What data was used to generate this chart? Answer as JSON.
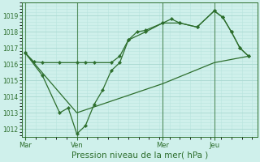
{
  "bg_color": "#cff0eb",
  "grid_color_major": "#a8d8d0",
  "grid_color_minor": "#b8e4de",
  "line_color": "#2d6e2d",
  "xlabel": "Pression niveau de la mer( hPa )",
  "xlabel_fontsize": 7.5,
  "ylim": [
    1011.5,
    1019.8
  ],
  "yticks": [
    1012,
    1013,
    1014,
    1015,
    1016,
    1017,
    1018,
    1019
  ],
  "day_labels": [
    "Mar",
    "Ven",
    "Mer",
    "Jeu"
  ],
  "day_positions": [
    0,
    3,
    8,
    11
  ],
  "xmin": -0.2,
  "xmax": 13.5,
  "series1_x": [
    0,
    0.5,
    1.0,
    2.0,
    3.0,
    3.5,
    4.0,
    5.0,
    5.5,
    6.0,
    6.5,
    7.0,
    8.0,
    8.5,
    9.0,
    10.0,
    11.0,
    11.5,
    12.0,
    12.5,
    13.0
  ],
  "series1_y": [
    1016.7,
    1016.15,
    1016.1,
    1016.1,
    1016.1,
    1016.1,
    1016.1,
    1016.1,
    1016.5,
    1017.5,
    1018.0,
    1018.1,
    1018.55,
    1018.8,
    1018.55,
    1018.3,
    1019.3,
    1018.9,
    1018.0,
    1017.0,
    1016.5
  ],
  "series2_x": [
    0,
    1.0,
    2.0,
    2.5,
    3.0,
    3.5,
    4.0,
    4.5,
    5.0,
    5.5,
    6.0,
    7.0,
    8.0,
    9.0,
    10.0,
    11.0,
    11.5,
    12.0,
    12.5,
    13.0
  ],
  "series2_y": [
    1016.7,
    1015.3,
    1013.0,
    1013.3,
    1011.7,
    1012.2,
    1013.5,
    1014.4,
    1015.6,
    1016.1,
    1017.5,
    1018.0,
    1018.55,
    1018.55,
    1018.3,
    1019.3,
    1018.9,
    1018.0,
    1017.0,
    1016.5
  ],
  "series3_x": [
    0,
    3,
    8,
    11,
    13.0
  ],
  "series3_y": [
    1016.7,
    1013.0,
    1014.8,
    1016.1,
    1016.5
  ]
}
